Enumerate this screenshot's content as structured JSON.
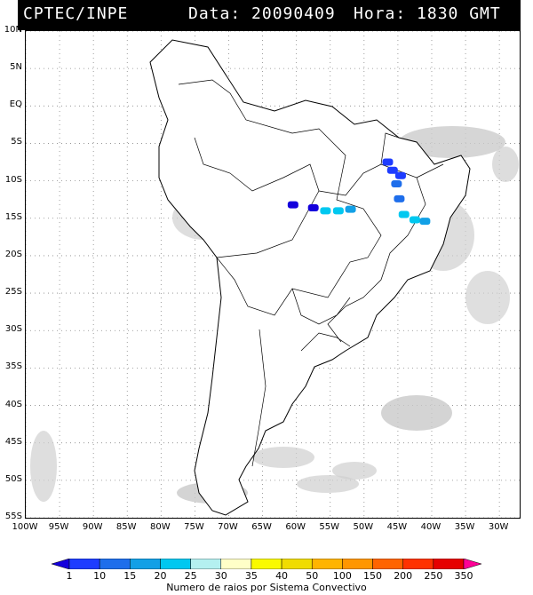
{
  "header": {
    "source": "CPTEC/INPE",
    "date_label": "Data: 20090409",
    "time_label": "Hora: 1830 GMT"
  },
  "lat_ticks": [
    "10N",
    "5N",
    "EQ",
    "5S",
    "10S",
    "15S",
    "20S",
    "25S",
    "30S",
    "35S",
    "40S",
    "45S",
    "50S",
    "55S"
  ],
  "lon_ticks": [
    "100W",
    "95W",
    "90W",
    "85W",
    "80W",
    "75W",
    "70W",
    "65W",
    "60W",
    "55W",
    "50W",
    "45W",
    "40W",
    "35W",
    "30W"
  ],
  "colorbar": {
    "labels": [
      "1",
      "10",
      "15",
      "20",
      "25",
      "30",
      "35",
      "40",
      "50",
      "100",
      "150",
      "200",
      "250",
      "350"
    ],
    "colors": [
      "#1400dc",
      "#1e3cff",
      "#1e6eeb",
      "#12a0e6",
      "#00c8f0",
      "#b4f0f0",
      "#ffffc8",
      "#fafa00",
      "#f0dc00",
      "#ffb400",
      "#ff9600",
      "#ff6400",
      "#ff3200",
      "#e60000",
      "#ff0096"
    ],
    "title": "Numero de raios por Sistema Convectivo"
  },
  "map": {
    "lat_range": [
      10,
      -55
    ],
    "lon_range": [
      -100,
      -27
    ],
    "lightning_cells": [
      {
        "lon": -46.5,
        "lat": -7.5,
        "color": "#1e3cff"
      },
      {
        "lon": -45.8,
        "lat": -8.6,
        "color": "#1e3cff"
      },
      {
        "lon": -44.6,
        "lat": -9.3,
        "color": "#1e3cff"
      },
      {
        "lon": -45.2,
        "lat": -10.4,
        "color": "#1e6eeb"
      },
      {
        "lon": -44.8,
        "lat": -12.4,
        "color": "#1e6eeb"
      },
      {
        "lon": -44.1,
        "lat": -14.5,
        "color": "#00c8f0"
      },
      {
        "lon": -42.5,
        "lat": -15.2,
        "color": "#00c8f0"
      },
      {
        "lon": -41.0,
        "lat": -15.4,
        "color": "#12a0e6"
      },
      {
        "lon": -60.5,
        "lat": -13.2,
        "color": "#1400dc"
      },
      {
        "lon": -57.5,
        "lat": -13.6,
        "color": "#1400dc"
      },
      {
        "lon": -55.7,
        "lat": -14.0,
        "color": "#00c8f0"
      },
      {
        "lon": -53.8,
        "lat": -14.0,
        "color": "#00c8f0"
      },
      {
        "lon": -52.0,
        "lat": -13.8,
        "color": "#12a0e6"
      }
    ]
  }
}
